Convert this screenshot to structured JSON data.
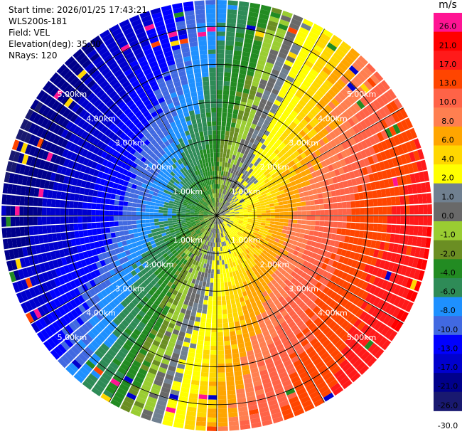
{
  "info": {
    "start_time": "Start time: 2026/01/25 17:43:21",
    "instrument": "WLS200s-181",
    "field": "Field: VEL",
    "elevation": "Elevation(deg): 35.00",
    "nrays": "NRays: 120"
  },
  "colorbar": {
    "unit": "m/s",
    "levels": [
      {
        "label": "26.0",
        "color": "#ff1493"
      },
      {
        "label": "21.0",
        "color": "#ff0000"
      },
      {
        "label": "17.0",
        "color": "#ff1a1a"
      },
      {
        "label": "13.0",
        "color": "#ff4500"
      },
      {
        "label": "10.0",
        "color": "#ff6347"
      },
      {
        "label": "8.0",
        "color": "#ff7f50"
      },
      {
        "label": "6.0",
        "color": "#ffa500"
      },
      {
        "label": "4.0",
        "color": "#ffd700"
      },
      {
        "label": "2.0",
        "color": "#ffff00"
      },
      {
        "label": "1.0",
        "color": "#708090"
      },
      {
        "label": "0.0",
        "color": "#696969"
      },
      {
        "label": "-1.0",
        "color": "#9acd32"
      },
      {
        "label": "-2.0",
        "color": "#6b8e23"
      },
      {
        "label": "-4.0",
        "color": "#228b22"
      },
      {
        "label": "-6.0",
        "color": "#2e8b57"
      },
      {
        "label": "-8.0",
        "color": "#1e90ff"
      },
      {
        "label": "-10.0",
        "color": "#4169e1"
      },
      {
        "label": "-13.0",
        "color": "#0000ff"
      },
      {
        "label": "-17.0",
        "color": "#0000cd"
      },
      {
        "label": "-21.0",
        "color": "#00008b"
      },
      {
        "label": "-26.0",
        "color": "#191970"
      },
      {
        "label": "-30.0",
        "color": ""
      }
    ]
  },
  "chart_data": {
    "type": "heatmap",
    "projection": "polar-ppi",
    "field": "VEL",
    "units": "m/s",
    "n_rays": 120,
    "elevation_deg": 35.0,
    "max_range_km": 5.7,
    "range_ring_labels": [
      "1.00km",
      "2.00km",
      "3.00km",
      "4.00km",
      "5.00km"
    ],
    "range_rings_km": [
      1,
      2,
      3,
      4,
      5
    ],
    "pattern": {
      "description_values": "approaching (negative) velocities toward west/northwest, receding (positive) toward east/southeast",
      "min_velocity": -21,
      "max_velocity": 21
    }
  }
}
